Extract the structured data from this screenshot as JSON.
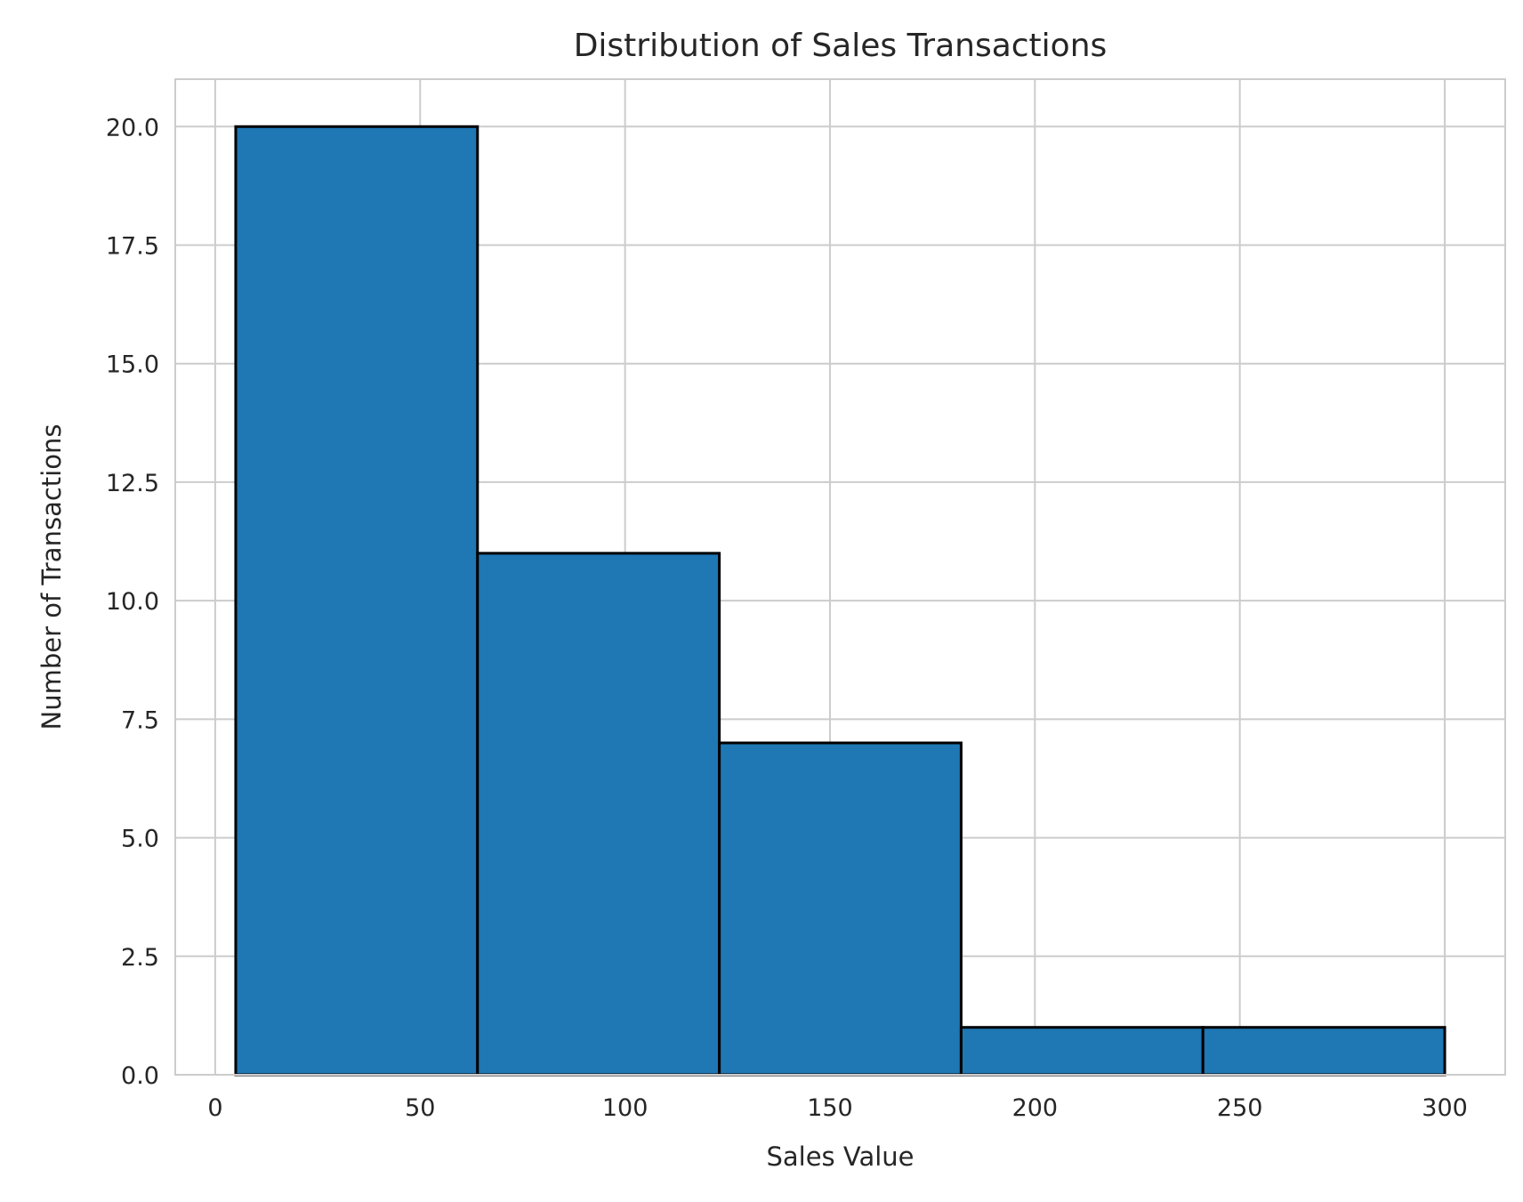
{
  "chart_data": {
    "type": "bar",
    "title": "Distribution of Sales Transactions",
    "xlabel": "Sales Value",
    "ylabel": "Number of Transactions",
    "bins": [
      {
        "start": 5,
        "end": 64,
        "count": 20
      },
      {
        "start": 64,
        "end": 123,
        "count": 11
      },
      {
        "start": 123,
        "end": 182,
        "count": 7
      },
      {
        "start": 182,
        "end": 241,
        "count": 1
      },
      {
        "start": 241,
        "end": 300,
        "count": 1
      }
    ],
    "xlim": [
      -9.75,
      314.75
    ],
    "ylim": [
      0,
      21
    ],
    "xticks": [
      0,
      50,
      100,
      150,
      200,
      250,
      300
    ],
    "xtick_labels": [
      "0",
      "50",
      "100",
      "150",
      "200",
      "250",
      "300"
    ],
    "yticks": [
      0,
      2.5,
      5,
      7.5,
      10,
      12.5,
      15,
      17.5,
      20
    ],
    "ytick_labels": [
      "0.0",
      "2.5",
      "5.0",
      "7.5",
      "10.0",
      "12.5",
      "15.0",
      "17.5",
      "20.0"
    ],
    "grid": true,
    "colors": {
      "bar": "#1f77b4",
      "edge": "#000000",
      "grid": "#cccccc"
    }
  }
}
